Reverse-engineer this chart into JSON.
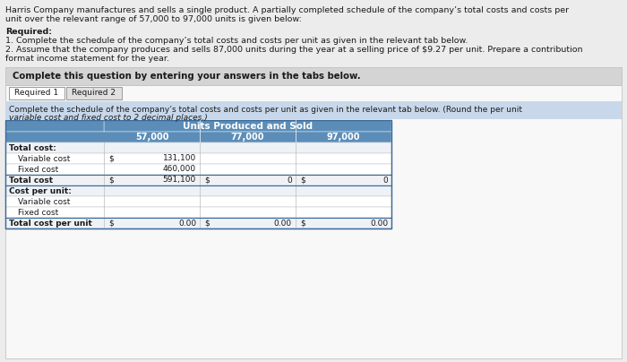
{
  "header_text_l1": "Harris Company manufactures and sells a single product. A partially completed schedule of the company’s total costs and costs per",
  "header_text_l2": "unit over the relevant range of 57,000 to 97,000 units is given below:",
  "required_label": "Required:",
  "req_item1": "1. Complete the schedule of the company’s total costs and costs per unit as given in the relevant tab below.",
  "req_item2a": "2. Assume that the company produces and sells 87,000 units during the year at a selling price of $9.27 per unit. Prepare a contribution",
  "req_item2b": "format income statement for the year.",
  "gray_box_text": "Complete this question by entering your answers in the tabs below.",
  "tab1": "Required 1",
  "tab2": "Required 2",
  "instr_l1": "Complete the schedule of the company’s total costs and costs per unit as given in the relevant tab below. (Round the per unit",
  "instr_l2": "variable cost and fixed cost to 2 decimal places.)",
  "table_header_main": "Units Produced and Sold",
  "col_headers": [
    "57,000",
    "77,000",
    "97,000"
  ],
  "row_labels": [
    "Total cost:",
    "   Variable cost",
    "   Fixed cost",
    "Total cost",
    "Cost per unit:",
    "   Variable cost",
    "   Fixed cost",
    "Total cost per unit"
  ],
  "bold_rows": [
    0,
    3,
    4,
    7
  ],
  "col1_dollar": [
    "",
    "$",
    "",
    "$",
    "",
    "",
    "",
    "$"
  ],
  "col1_num": [
    "",
    "131,100",
    "460,000",
    "591,100",
    "",
    "",
    "",
    "0.00"
  ],
  "col2_dollar": [
    "",
    "",
    "",
    "$",
    "",
    "",
    "",
    "$"
  ],
  "col2_num": [
    "",
    "",
    "",
    "0",
    "",
    "",
    "",
    "0.00"
  ],
  "col3_dollar": [
    "",
    "",
    "",
    "$",
    "",
    "",
    "",
    "$"
  ],
  "col3_num": [
    "",
    "",
    "",
    "0",
    "",
    "",
    "",
    "0.00"
  ],
  "header_bg": "#5b8db8",
  "row_alt1": "#eef2f7",
  "row_white": "#ffffff",
  "gray_box_bg": "#d4d4d4",
  "instr_bg": "#c8d8ea",
  "table_outer_border": "#3a6a9a",
  "body_text_color": "#1a1a1a",
  "tab_active_bg": "#ffffff",
  "tab_inactive_bg": "#e0e0e0",
  "page_bg": "#ececec"
}
